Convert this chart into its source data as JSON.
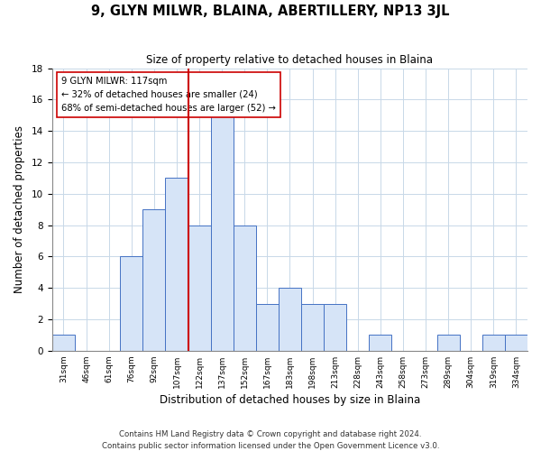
{
  "title": "9, GLYN MILWR, BLAINA, ABERTILLERY, NP13 3JL",
  "subtitle": "Size of property relative to detached houses in Blaina",
  "xlabel": "Distribution of detached houses by size in Blaina",
  "ylabel": "Number of detached properties",
  "footnote1": "Contains HM Land Registry data © Crown copyright and database right 2024.",
  "footnote2": "Contains public sector information licensed under the Open Government Licence v3.0.",
  "bin_labels": [
    "31sqm",
    "46sqm",
    "61sqm",
    "76sqm",
    "92sqm",
    "107sqm",
    "122sqm",
    "137sqm",
    "152sqm",
    "167sqm",
    "183sqm",
    "198sqm",
    "213sqm",
    "228sqm",
    "243sqm",
    "258sqm",
    "273sqm",
    "289sqm",
    "304sqm",
    "319sqm",
    "334sqm"
  ],
  "bin_counts": [
    1,
    0,
    0,
    6,
    9,
    11,
    8,
    15,
    8,
    3,
    4,
    3,
    3,
    0,
    1,
    0,
    0,
    1,
    0,
    1,
    1
  ],
  "bar_color": "#d6e4f7",
  "bar_edge_color": "#4472c4",
  "vline_color": "#cc0000",
  "vline_x_index": 6.0,
  "annotation_title": "9 GLYN MILWR: 117sqm",
  "annotation_line1": "← 32% of detached houses are smaller (24)",
  "annotation_line2": "68% of semi-detached houses are larger (52) →",
  "annotation_box_color": "#ffffff",
  "annotation_box_edge": "#cc0000",
  "ylim": [
    0,
    18
  ],
  "yticks": [
    0,
    2,
    4,
    6,
    8,
    10,
    12,
    14,
    16,
    18
  ]
}
